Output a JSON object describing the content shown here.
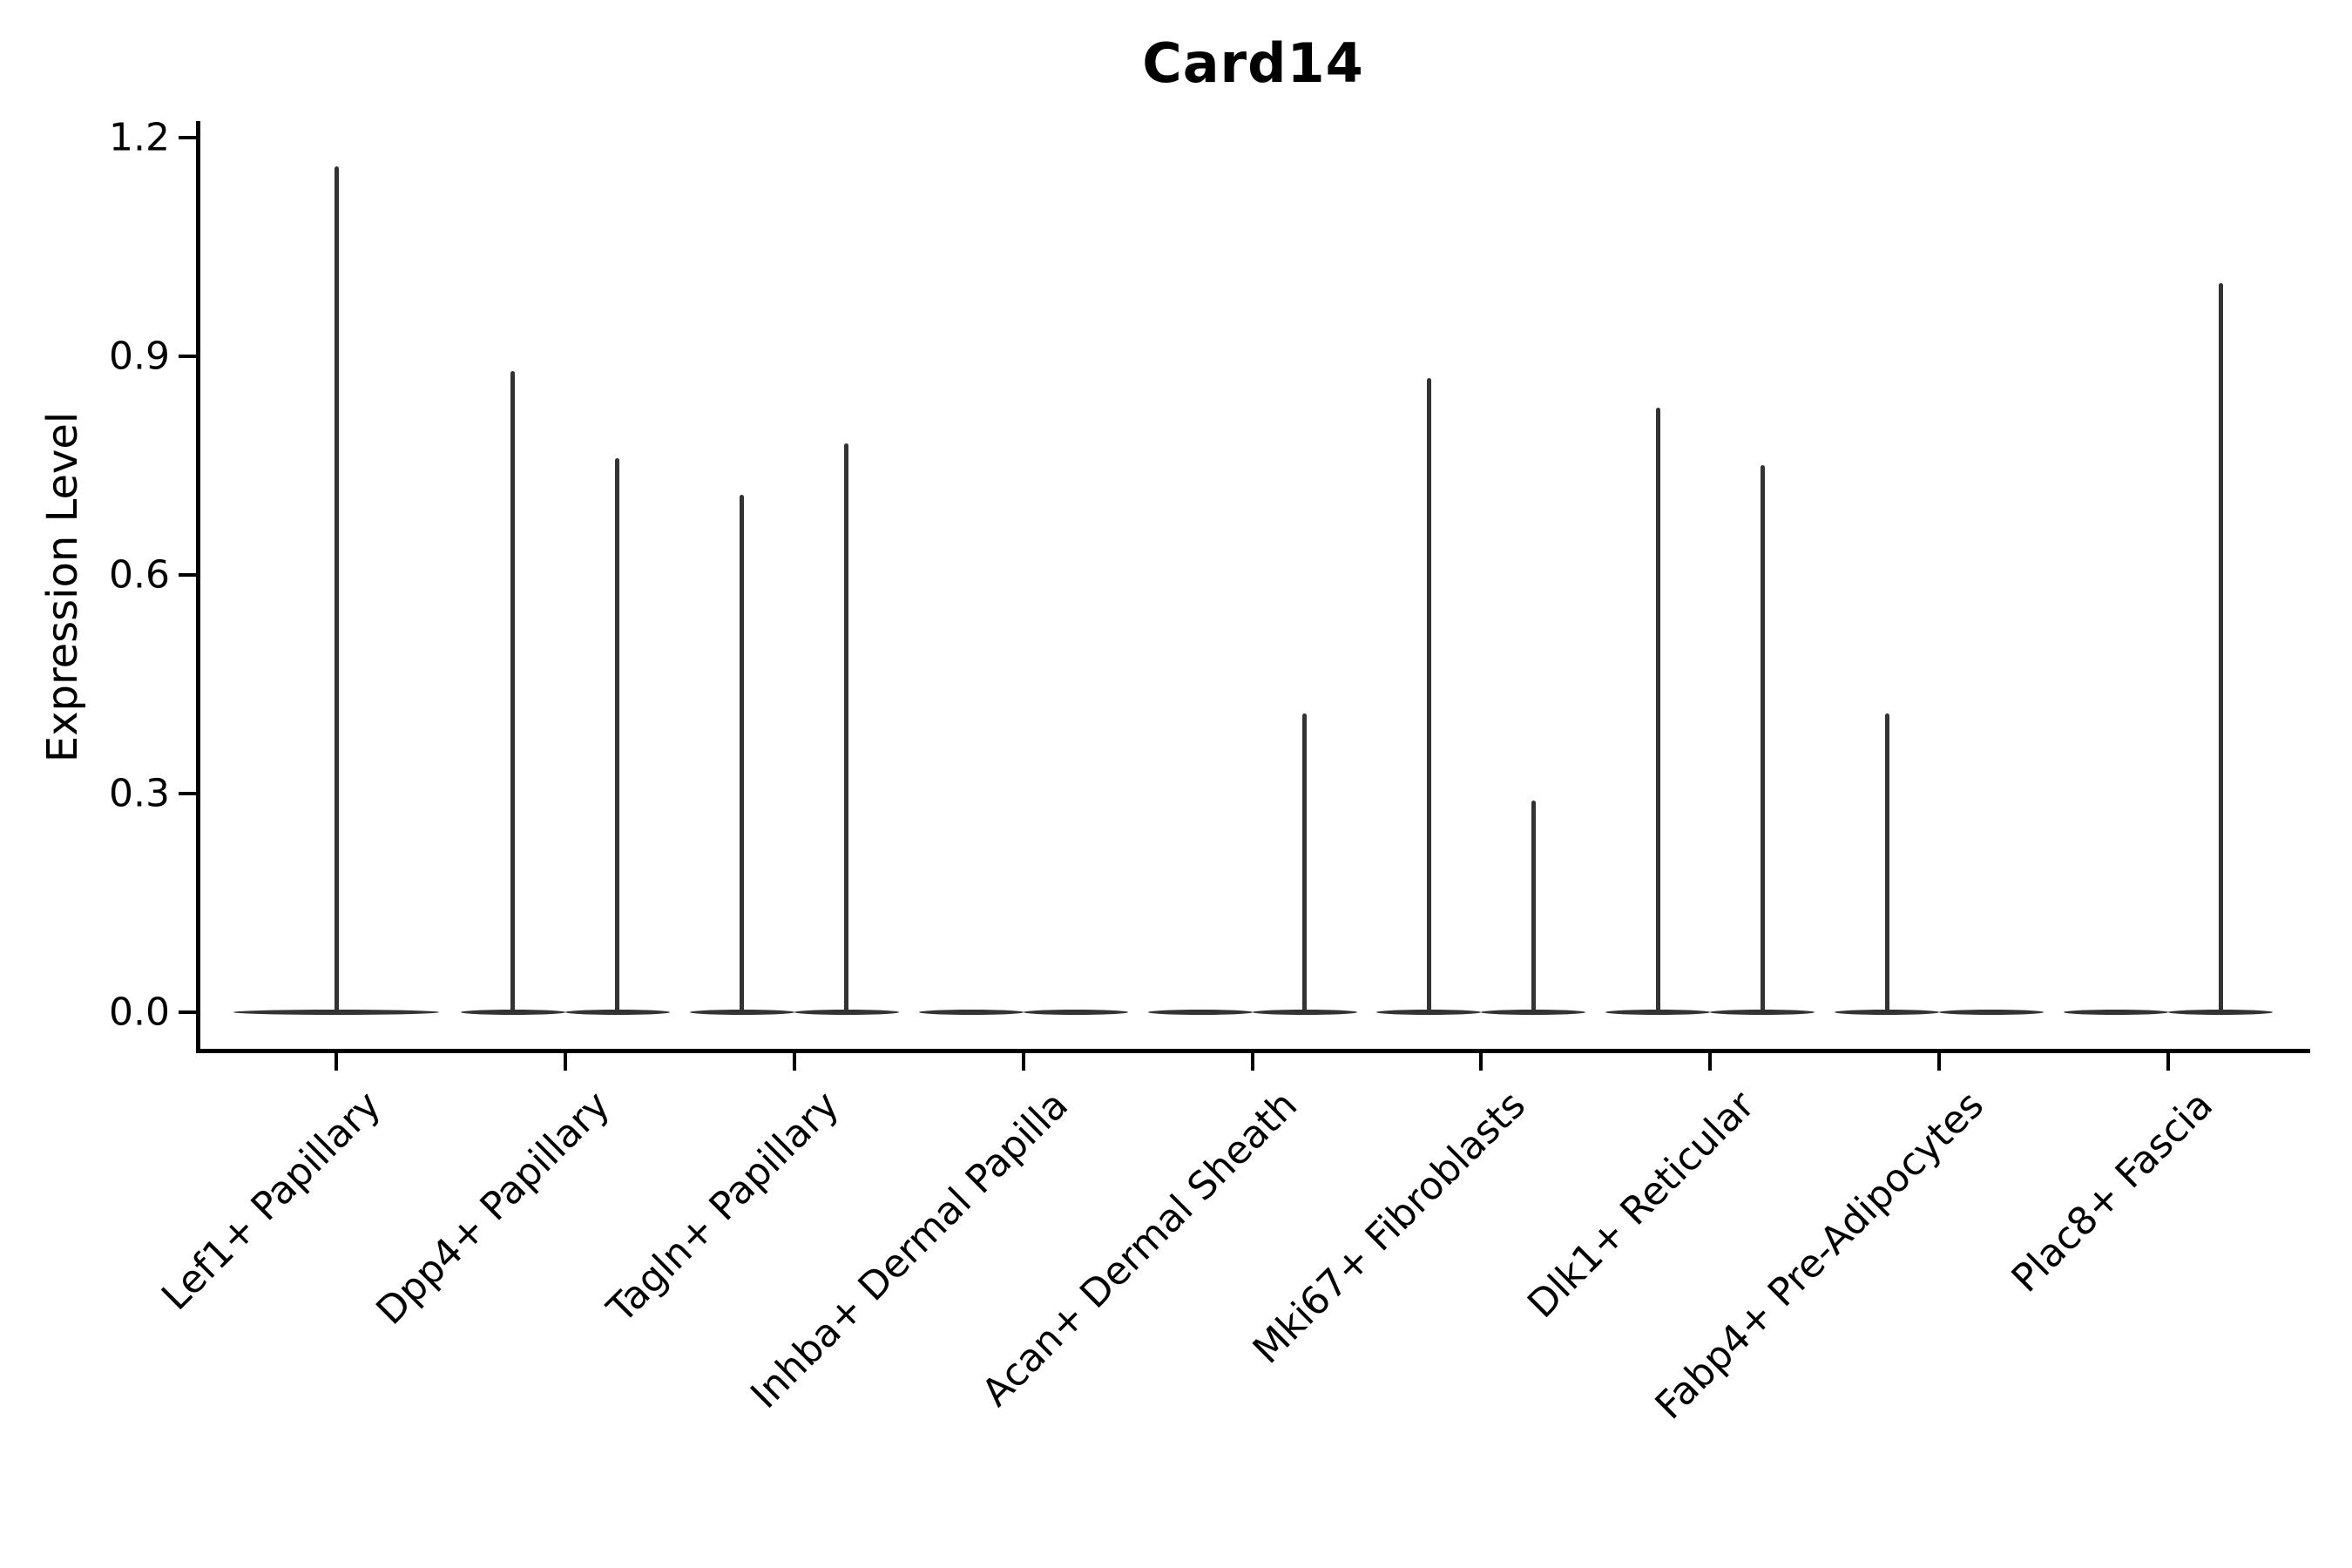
{
  "figure": {
    "title": "Card14",
    "ylabel": "Expression Level"
  },
  "chart_data": {
    "type": "violin",
    "title": "Card14",
    "xlabel": "",
    "ylabel": "Expression Level",
    "ylim": [
      -0.06,
      1.22
    ],
    "yticks": [
      0.0,
      0.3,
      0.6,
      0.9,
      1.2
    ],
    "ytick_labels": [
      "0.0",
      "0.3",
      "0.6",
      "0.9",
      "1.2"
    ],
    "grid": false,
    "legend": "none",
    "colors": {
      "violin": "#333333",
      "axis": "#000000",
      "text": "#000000",
      "background": "#ffffff"
    },
    "description": "Violin plot of Card14 expression; each category shows flat zero-density bases with thin spikes up to the max expression value; categories with two dodged sub-violins have left/right spikes.",
    "categories": [
      {
        "label": "Lef1+ Papillary",
        "violins": [
          {
            "position": "center",
            "max_expression": 1.16
          }
        ]
      },
      {
        "label": "Dpp4+ Papillary",
        "violins": [
          {
            "position": "left",
            "max_expression": 0.88
          },
          {
            "position": "right",
            "max_expression": 0.76
          }
        ]
      },
      {
        "label": "Tagln+ Papillary",
        "violins": [
          {
            "position": "left",
            "max_expression": 0.71
          },
          {
            "position": "right",
            "max_expression": 0.78
          }
        ]
      },
      {
        "label": "Inhba+ Dermal Papilla",
        "violins": [
          {
            "position": "left",
            "max_expression": 0
          },
          {
            "position": "right",
            "max_expression": 0
          }
        ]
      },
      {
        "label": "Acan+ Dermal Sheath",
        "violins": [
          {
            "position": "left",
            "max_expression": 0
          },
          {
            "position": "right",
            "max_expression": 0.41
          }
        ]
      },
      {
        "label": "Mki67+ Fibroblasts",
        "violins": [
          {
            "position": "left",
            "max_expression": 0.87
          },
          {
            "position": "right",
            "max_expression": 0.29
          }
        ]
      },
      {
        "label": "Dlk1+ Reticular",
        "violins": [
          {
            "position": "left",
            "max_expression": 0.83
          },
          {
            "position": "right",
            "max_expression": 0.75
          }
        ]
      },
      {
        "label": "Fabp4+ Pre-Adipocytes",
        "violins": [
          {
            "position": "left",
            "max_expression": 0.41
          },
          {
            "position": "right",
            "max_expression": 0
          }
        ]
      },
      {
        "label": "Plac8+ Fascia",
        "violins": [
          {
            "position": "left",
            "max_expression": 0
          },
          {
            "position": "right",
            "max_expression": 1.0
          }
        ]
      }
    ]
  }
}
